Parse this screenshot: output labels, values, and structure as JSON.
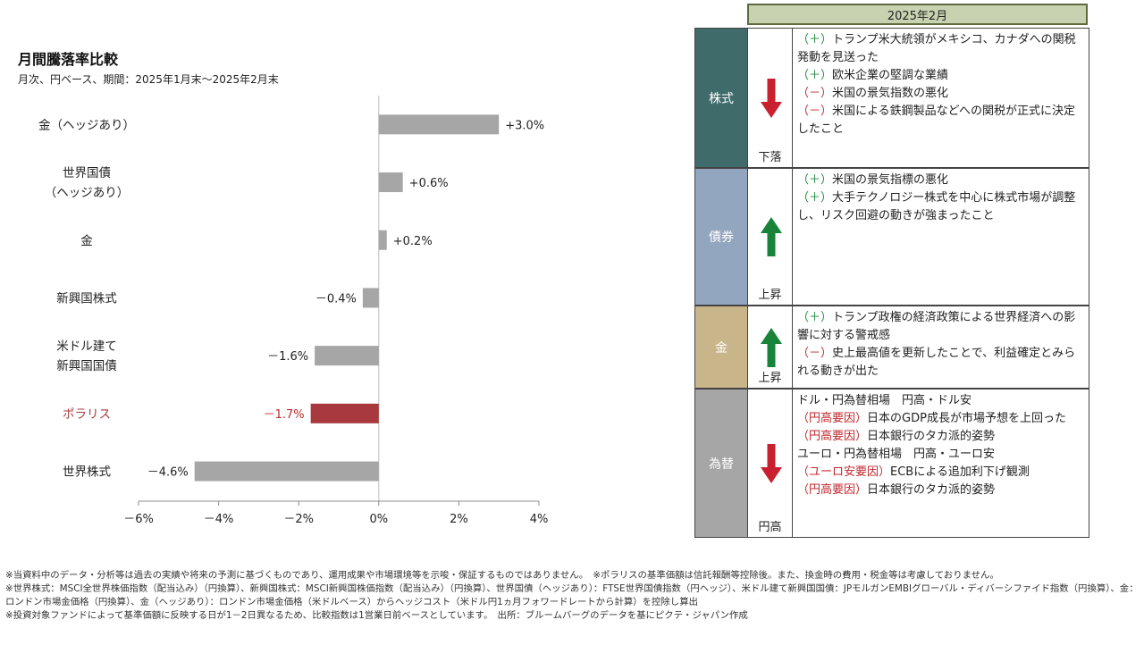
{
  "chart_data": {
    "type": "bar",
    "orientation": "horizontal",
    "title": "月間騰落率比較",
    "subtitle": "月次、円ベース、期間：2025年1月末～2025年2月末",
    "categories": [
      [
        "金（ヘッジあり）"
      ],
      [
        "世界国債",
        "（ヘッジあり）"
      ],
      [
        "金"
      ],
      [
        "新興国株式"
      ],
      [
        "米ドル建て",
        "新興国国債"
      ],
      [
        "ポラリス"
      ],
      [
        "世界株式"
      ]
    ],
    "values": [
      3.0,
      0.6,
      0.2,
      -0.4,
      -1.6,
      -1.7,
      -4.6
    ],
    "value_labels": [
      "+3.0%",
      "+0.6%",
      "+0.2%",
      "－0.4%",
      "－1.6%",
      "－1.7%",
      "－4.6%"
    ],
    "highlight_index": 5,
    "xlim": [
      -6,
      4
    ],
    "xticks": [
      "－6%",
      "－4%",
      "－2%",
      "0%",
      "2%",
      "4%"
    ],
    "tick_values": [
      -6,
      -4,
      -2,
      0,
      2,
      4
    ],
    "colors": {
      "bar": "#a6a6a6",
      "highlight": "#a83a3f",
      "highlight_label": "#c0282d"
    }
  },
  "table": {
    "period": "2025年2月",
    "rows": [
      {
        "category": "株式",
        "color": "#3f6b6b",
        "direction": "down",
        "direction_label": "下落",
        "reasons": [
          [
            {
              "t": "（＋）",
              "c": "plus"
            },
            {
              "t": "トランプ米大統領がメキシコ、カナダへの関税発動を見送った"
            }
          ],
          [
            {
              "t": "（＋）",
              "c": "plus"
            },
            {
              "t": "欧米企業の堅調な業績"
            }
          ],
          [
            {
              "t": "（－）",
              "c": "minus"
            },
            {
              "t": "米国の景気指数の悪化"
            }
          ],
          [
            {
              "t": "（－）",
              "c": "minus"
            },
            {
              "t": "米国による鉄鋼製品などへの関税が正式に決定したこと"
            }
          ]
        ]
      },
      {
        "category": "債券",
        "color": "#93a6bf",
        "direction": "up",
        "direction_label": "上昇",
        "reasons": [
          [
            {
              "t": "（＋）",
              "c": "plus"
            },
            {
              "t": "米国の景気指標の悪化"
            }
          ],
          [
            {
              "t": "（＋）",
              "c": "plus"
            },
            {
              "t": "大手テクノロジー株式を中心に株式市場が調整し、リスク回避の動きが強まったこと"
            }
          ]
        ]
      },
      {
        "category": "金",
        "color": "#c9b58a",
        "direction": "up",
        "direction_label": "上昇",
        "reasons": [
          [
            {
              "t": "（＋）",
              "c": "plus"
            },
            {
              "t": "トランプ政権の経済政策による世界経済への影響に対する警戒感"
            }
          ],
          [
            {
              "t": "（－）",
              "c": "minus"
            },
            {
              "t": "史上最高値を更新したことで、利益確定とみられる動きが出た"
            }
          ]
        ]
      },
      {
        "category": "為替",
        "color": "#a6a6a6",
        "direction": "down",
        "direction_label": "円高",
        "reasons": [
          [
            {
              "t": "ドル・円為替相場　円高・ドル安"
            }
          ],
          [
            {
              "t": "（円高要因）",
              "c": "redtag"
            },
            {
              "t": "日本のGDP成長が市場予想を上回った"
            }
          ],
          [
            {
              "t": "（円高要因）",
              "c": "redtag"
            },
            {
              "t": "日本銀行のタカ派的姿勢"
            }
          ],
          [
            {
              "t": "ユーロ・円為替相場　円高・ユーロ安"
            }
          ],
          [
            {
              "t": "（ユーロ安要因）",
              "c": "redtag"
            },
            {
              "t": "ECBによる追加利下げ観測"
            }
          ],
          [
            {
              "t": "（円高要因）",
              "c": "redtag"
            },
            {
              "t": "日本銀行のタカ派的姿勢"
            }
          ]
        ]
      }
    ],
    "arrow_colors": {
      "up": "#17843a",
      "down": "#c9202f"
    }
  },
  "footnotes": [
    "※当資料中のデータ・分析等は過去の実績や将来の予測に基づくものであり、運用成果や市場環境等を示唆・保証するものではありません。　※ポラリスの基準価額は信託報酬等控除後。また、換金時の費用・税金等は考慮しておりません。",
    "※世界株式：MSCI全世界株価指数（配当込み）（円換算）、新興国株式：MSCI新興国株価指数（配当込み）（円換算）、世界国債（ヘッジあり）：FTSE世界国債指数（円ヘッジ）、米ドル建て新興国国債：JPモルガンEMBIグローバル・ディバーシファイド指数（円換算）、金：ロンドン市場金価格（円換算）、金（ヘッジあり）：ロンドン市場金価格（米ドルベース）からヘッジコスト（米ドル円1ヵ月フォワードレートから計算）を控除し算出",
    "※投資対象ファンドによって基準価額に反映する日が1－2日異なるため、比較指数は1営業日前ベースとしています。　出所：ブルームバーグのデータを基にピクテ・ジャパン作成"
  ]
}
